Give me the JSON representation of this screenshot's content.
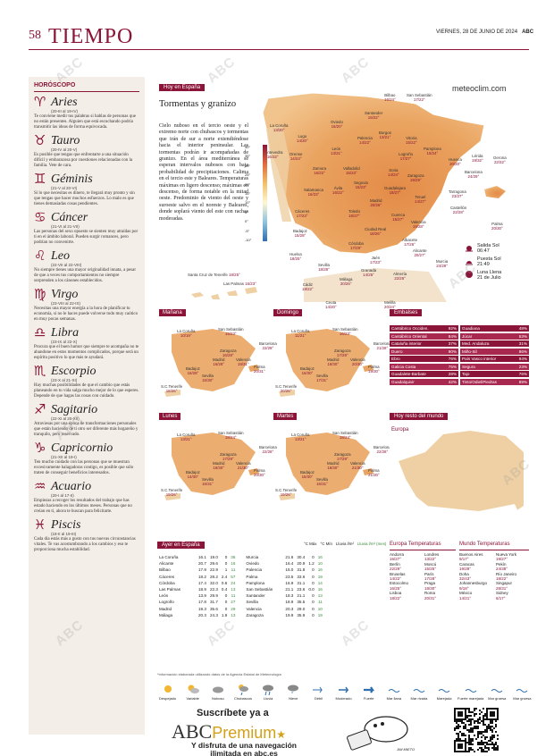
{
  "header": {
    "page_number": "58",
    "section": "TIEMPO",
    "date": "VIERNES, 28 DE JUNIO DE 2024",
    "brand": "ABC"
  },
  "horoscope": {
    "title": "HORÓSCOPO",
    "signs": [
      {
        "glyph": "♈",
        "name": "Aries",
        "dates": "(20-III al 19-IV)",
        "text": "Te conviene medir tus palabras si hablas de personas que no están presentes. Alguien que está escuchando podría transmitir las ideas de forma equivocada."
      },
      {
        "glyph": "♉",
        "name": "Tauro",
        "dates": "(20-IV al 20-V)",
        "text": "Es posible que tengas que enfrentarte a una situación difícil y embarazosa por cuestiones relacionadas con la familia. Vete de cara."
      },
      {
        "glyph": "♊",
        "name": "Géminis",
        "dates": "(21-V al 20-VI)",
        "text": "Si lo que necesitas es dinero, te llegará muy pronto y sin que tengas que hacer muchos esfuerzos. Lo malo es que tienes demasiadas cosas pendientes."
      },
      {
        "glyph": "♋",
        "name": "Cáncer",
        "dates": "(21-VI al 21-VII)",
        "text": "Las personas del sexo opuesto se sienten muy atraídas por ti en el ámbito laboral. Pueden surgir romances, pero podrían no convenirte."
      },
      {
        "glyph": "♌",
        "name": "Leo",
        "dates": "(22-VII al 22-VIII)",
        "text": "No siempre tienes una mayor originalidad innata, a pesar de que a veces tus comportamientos no siempre sorprenden a los cánones establecidos."
      },
      {
        "glyph": "♍",
        "name": "Virgo",
        "dates": "(23-VIII al 22-IX)",
        "text": "Necesitas una mayor energía a la hora de planificar tu economía, si no le haces puede volverse todo muy caótico en muy pocas semanas."
      },
      {
        "glyph": "♎",
        "name": "Libra",
        "dates": "(23-IX al 22-X)",
        "text": "Procura que el buen humor que siempre te acompaña no te abandone en estos momentos complicados, porque será un espíritu positivo lo que más te ayudará."
      },
      {
        "glyph": "♏",
        "name": "Escorpio",
        "dates": "(23-X al 21-XI)",
        "text": "Hay muchas posibilidades de que el cambio que estás planeando en tu vida salga mucho mejor de lo que esperes. Depende de que hagas las cosas con cuidado."
      },
      {
        "glyph": "♐",
        "name": "Sagitario",
        "dates": "(22-XI al 20-XII)",
        "text": "Atraviesas por una época de transformaciones personales que están haciendo de ti otro ser diferente más hogareño y tranquilo, pero reservado."
      },
      {
        "glyph": "♑",
        "name": "Capricornio",
        "dates": "(21-XII al 19-I)",
        "text": "Ten mucho cuidado con las personas que se muestran excesivamente halagadoras contigo, es posible que sólo traten de conseguir beneficios interesados."
      },
      {
        "glyph": "♒",
        "name": "Acuario",
        "dates": "(20-I al 17-II)",
        "text": "Empiezas a recoger los resultados del trabajo que has estado haciendo en los últimos meses. Personas que no creían en ti, ahora te buscan para felicitarte."
      },
      {
        "glyph": "♓",
        "name": "Piscis",
        "dates": "(18-II al 19-III)",
        "text": "Cada día estás más a gusto con tus nuevas circunstancias vitales. Te vas acostumbrando a los cambios y eso te proporciona mucha estabilidad."
      }
    ]
  },
  "today": {
    "tag": "Hoy en España",
    "title": "Tormentas y granizo",
    "description": "Cielo nuboso en el tercio oeste y el extremo norte con chubascos y tormentas que irán de sur a norte extendiéndose hacia el interior peninsular. Las tormentas podrán ir acompañadas de granizo. En el área mediterránea se esperan intervalos nubosos con baja probabilidad de precipitaciones. Calima en el tercio este y Baleares. Temperaturas máximas en ligero descenso; máximas en descenso, de forma notable en la mitad oeste. Predominio de viento del oeste y suroeste salvo en el noreste y Baleares, donde soplará viento del este con rachas moderadas.",
    "brand": "meteoclim.com",
    "thermo_scale": [
      "40°",
      "35°",
      "30°",
      "25°",
      "20°",
      "15°",
      "10°",
      "5°",
      "0°",
      "-5°",
      "-10°"
    ]
  },
  "map_cities": [
    {
      "name": "La Coruña",
      "temps": "13/20°"
    },
    {
      "name": "Oviedo",
      "temps": "15/20°"
    },
    {
      "name": "Bilbao",
      "temps": "16/24°"
    },
    {
      "name": "San Sebastián",
      "temps": "17/22°"
    },
    {
      "name": "Lugo",
      "temps": "14/20°"
    },
    {
      "name": "Santander",
      "temps": "16/22°"
    },
    {
      "name": "Pontevedra",
      "temps": "16/22°"
    },
    {
      "name": "Orense",
      "temps": "14/24°"
    },
    {
      "name": "León",
      "temps": "13/21°"
    },
    {
      "name": "Palencia",
      "temps": "14/22°"
    },
    {
      "name": "Burgos",
      "temps": "13/21°"
    },
    {
      "name": "Vitoria",
      "temps": "15/22°"
    },
    {
      "name": "Pamplona",
      "temps": "15/24°"
    },
    {
      "name": "Huesca",
      "temps": "20/30°"
    },
    {
      "name": "Lérida",
      "temps": "19/32°"
    },
    {
      "name": "Gerona",
      "temps": "22/32°"
    },
    {
      "name": "Logroño",
      "temps": "17/27°"
    },
    {
      "name": "Zamora",
      "temps": "16/22°"
    },
    {
      "name": "Valladolid",
      "temps": "15/23°"
    },
    {
      "name": "Soria",
      "temps": "14/24°"
    },
    {
      "name": "Zaragoza",
      "temps": "19/29°"
    },
    {
      "name": "Barcelona",
      "temps": "24/29°"
    },
    {
      "name": "Salamanca",
      "temps": "16/23°"
    },
    {
      "name": "Segovia",
      "temps": "15/23°"
    },
    {
      "name": "Tarragona",
      "temps": "23/27°"
    },
    {
      "name": "Ávila",
      "temps": "16/22°"
    },
    {
      "name": "Guadalajara",
      "temps": "18/27°"
    },
    {
      "name": "Teruel",
      "temps": "14/27°"
    },
    {
      "name": "Madrid",
      "temps": "20/26°"
    },
    {
      "name": "Castellón",
      "temps": "22/28°"
    },
    {
      "name": "Cáceres",
      "temps": "17/23°"
    },
    {
      "name": "Toledo",
      "temps": "19/27°"
    },
    {
      "name": "Cuenca",
      "temps": "15/27°"
    },
    {
      "name": "Palma",
      "temps": "20/30°"
    },
    {
      "name": "Valencia",
      "temps": "19/28°"
    },
    {
      "name": "Badajoz",
      "temps": "15/28°"
    },
    {
      "name": "Ciudad Real",
      "temps": "18/26°"
    },
    {
      "name": "Albacete",
      "temps": "17/26°"
    },
    {
      "name": "Córdoba",
      "temps": "17/29°"
    },
    {
      "name": "Jaén",
      "temps": "17/23°"
    },
    {
      "name": "Alicante",
      "temps": "20/27°"
    },
    {
      "name": "Murcia",
      "temps": "24/29°"
    },
    {
      "name": "Huelva",
      "temps": "18/25°"
    },
    {
      "name": "Sevilla",
      "temps": "18/28°"
    },
    {
      "name": "Granada",
      "temps": "14/25°"
    },
    {
      "name": "Almería",
      "temps": "22/26°"
    },
    {
      "name": "Cádiz",
      "temps": "18/22°"
    },
    {
      "name": "Málaga",
      "temps": "20/26°"
    },
    {
      "name": "Ceuta",
      "temps": "14/20°"
    },
    {
      "name": "Melilla",
      "temps": "20/24°"
    }
  ],
  "canarias": [
    {
      "name": "Santa Cruz de Tenerife",
      "temps": "18/25°"
    },
    {
      "name": "Las Palmas",
      "temps": "16/23°"
    }
  ],
  "sun_moon": [
    {
      "label": "Salida Sol",
      "value": "06:47"
    },
    {
      "label": "Puesta Sol",
      "value": "21:49"
    },
    {
      "label": "Luna Llena",
      "value": "21 de Julio"
    }
  ],
  "forecast_maps": [
    {
      "label": "Mañana",
      "cities": [
        {
          "name": "La Coruña",
          "temps": "10/19°"
        },
        {
          "name": "San Sebastián",
          "temps": "15/23°"
        },
        {
          "name": "Barcelona",
          "temps": "22/28°"
        },
        {
          "name": "Zaragoza",
          "temps": "16/28°"
        },
        {
          "name": "Madrid",
          "temps": "16/28°"
        },
        {
          "name": "Valencia",
          "temps": "19/31°"
        },
        {
          "name": "Palma",
          "temps": "20/31°"
        },
        {
          "name": "Badajoz",
          "temps": "16/28°"
        },
        {
          "name": "Sevilla",
          "temps": "15/30°"
        },
        {
          "name": "S.C.Tenerife",
          "temps": "18/26°"
        }
      ]
    },
    {
      "label": "Domingo",
      "cities": [
        {
          "name": "La Coruña",
          "temps": "11/21°"
        },
        {
          "name": "San Sebastián",
          "temps": "16/23°"
        },
        {
          "name": "Barcelona",
          "temps": "21/28°"
        },
        {
          "name": "Zaragoza",
          "temps": "17/29°"
        },
        {
          "name": "Madrid",
          "temps": "18/30°"
        },
        {
          "name": "Valencia",
          "temps": "20/30°"
        },
        {
          "name": "Palma",
          "temps": "19/30°"
        },
        {
          "name": "Badajoz",
          "temps": "16/30°"
        },
        {
          "name": "Sevilla",
          "temps": "17/31°"
        },
        {
          "name": "S.C.Tenerife",
          "temps": "20/26°"
        }
      ]
    },
    {
      "label": "Lunes",
      "cities": [
        {
          "name": "La Coruña",
          "temps": "13/21°"
        },
        {
          "name": "San Sebastián",
          "temps": "18/24°"
        },
        {
          "name": "Barcelona",
          "temps": "22/28°"
        },
        {
          "name": "Zaragoza",
          "temps": "17/29°"
        },
        {
          "name": "Madrid",
          "temps": "19/30°"
        },
        {
          "name": "Valencia",
          "temps": "21/30°"
        },
        {
          "name": "Palma",
          "temps": "20/30°"
        },
        {
          "name": "Badajoz",
          "temps": "14/30°"
        },
        {
          "name": "Sevilla",
          "temps": "16/31°"
        },
        {
          "name": "S.C.Tenerife",
          "temps": "19/26°"
        }
      ]
    },
    {
      "label": "Martes",
      "cities": [
        {
          "name": "La Coruña",
          "temps": "13/21°"
        },
        {
          "name": "San Sebastián",
          "temps": "18/24°"
        },
        {
          "name": "Barcelona",
          "temps": "22/28°"
        },
        {
          "name": "Zaragoza",
          "temps": "17/29°"
        },
        {
          "name": "Madrid",
          "temps": "18/30°"
        },
        {
          "name": "Valencia",
          "temps": "21/30°"
        },
        {
          "name": "Palma",
          "temps": "21/30°"
        },
        {
          "name": "Badajoz",
          "temps": "15/30°"
        },
        {
          "name": "Sevilla",
          "temps": "16/31°"
        },
        {
          "name": "S.C.Tenerife",
          "temps": "19/26°"
        }
      ]
    }
  ],
  "reservoirs": {
    "tag": "Embalses",
    "left": [
      {
        "name": "Cantábrico Occiden.",
        "pct": "92%"
      },
      {
        "name": "Cantábrico Oriental",
        "pct": "84%"
      },
      {
        "name": "Cataluña interior",
        "pct": "37%"
      },
      {
        "name": "Duero",
        "pct": "90%"
      },
      {
        "name": "Ebro",
        "pct": "76%"
      },
      {
        "name": "Galicia Costa",
        "pct": "75%"
      },
      {
        "name": "Guadalete-Barbate",
        "pct": "28%"
      },
      {
        "name": "Guadalquivir",
        "pct": "42%"
      }
    ],
    "right": [
      {
        "name": "Guadiana",
        "pct": "48%"
      },
      {
        "name": "Júcar",
        "pct": "53%"
      },
      {
        "name": "Med. Andaluza",
        "pct": "31%"
      },
      {
        "name": "Miño-Sil",
        "pct": "86%"
      },
      {
        "name": "País Vasco interior",
        "pct": "94%"
      },
      {
        "name": "Segura",
        "pct": "23%"
      },
      {
        "name": "Tajo",
        "pct": "76%"
      },
      {
        "name": "Tinto/Odiel/Piedras",
        "pct": "89%"
      }
    ]
  },
  "world": {
    "tag": "Hoy resto del mundo",
    "region": "Europa"
  },
  "spain_temps": {
    "tag": "Ayer en España",
    "headers": [
      "°C Máx",
      "°C Mín",
      "Lluvia l/m²",
      "Lluvia l/m² (mes)"
    ],
    "left": [
      {
        "city": "La Coruña",
        "v": [
          "16.1",
          "19.0",
          "0",
          "36"
        ]
      },
      {
        "city": "Alicante",
        "v": [
          "20.7",
          "29.6",
          "0",
          "16"
        ]
      },
      {
        "city": "Bilbao",
        "v": [
          "17.9",
          "22.9",
          "1",
          "11"
        ]
      },
      {
        "city": "Cáceres",
        "v": [
          "18.2",
          "28.2",
          "2.4",
          "57"
        ]
      },
      {
        "city": "Córdoba",
        "v": [
          "17.4",
          "32.0",
          "0.6",
          "24"
        ]
      },
      {
        "city": "Las Palmas",
        "v": [
          "18.9",
          "22.3",
          "0.4",
          "13"
        ]
      },
      {
        "city": "León",
        "v": [
          "13.9",
          "29.9",
          "0",
          "11"
        ]
      },
      {
        "city": "Logroño",
        "v": [
          "17.8",
          "31.7",
          "0",
          "27"
        ]
      },
      {
        "city": "Madrid",
        "v": [
          "19.3",
          "35.6",
          "0",
          "29"
        ]
      },
      {
        "city": "Málaga",
        "v": [
          "20.3",
          "24.3",
          "1.9",
          "13"
        ]
      }
    ],
    "right": [
      {
        "city": "Murcia",
        "v": [
          "21.6",
          "30.4",
          "0",
          "16"
        ]
      },
      {
        "city": "Oviedo",
        "v": [
          "16.4",
          "20.9",
          "1.2",
          "10"
        ]
      },
      {
        "city": "Palencia",
        "v": [
          "15.0",
          "31.8",
          "0",
          "16"
        ]
      },
      {
        "city": "Palma",
        "v": [
          "23.5",
          "33.6",
          "0",
          "19"
        ]
      },
      {
        "city": "Pamplona",
        "v": [
          "16.9",
          "31.1",
          "0",
          "14"
        ]
      },
      {
        "city": "San Sebastián",
        "v": [
          "21.1",
          "23.6",
          "0.0",
          "16"
        ]
      },
      {
        "city": "Santander",
        "v": [
          "18.3",
          "21.1",
          "0",
          "13"
        ]
      },
      {
        "city": "Sevilla",
        "v": [
          "18.9",
          "35.5",
          "0",
          "11"
        ]
      },
      {
        "city": "Valencia",
        "v": [
          "20.3",
          "29.0",
          "0",
          "10"
        ]
      },
      {
        "city": "Zaragoza",
        "v": [
          "19.9",
          "35.9",
          "0",
          "19"
        ]
      }
    ],
    "note": "*Información elaborada utilizando datos de la Agencia Estatal de Meteorología"
  },
  "europe_temps": {
    "title": "Europa Temperaturas",
    "rows": [
      [
        "Andorra",
        "16/27°",
        "Londres",
        "13/22°"
      ],
      [
        "Berlín",
        "22/29°",
        "Moscú",
        "15/25°"
      ],
      [
        "Bruselas",
        "14/22°",
        "París",
        "17/28°"
      ],
      [
        "Estocolmo",
        "16/25°",
        "Praga",
        "18/30°"
      ],
      [
        "Lisboa",
        "18/22°",
        "Roma",
        "20/31°"
      ]
    ]
  },
  "world_temps": {
    "title": "Mundo Temperaturas",
    "rows": [
      [
        "Buenos Aires",
        "9/17°",
        "Nueva York",
        "19/27°"
      ],
      [
        "Caracas",
        "19/28°",
        "Pekín",
        "24/38°"
      ],
      [
        "Doha",
        "32/43°",
        "Río Janeiro",
        "18/22°"
      ],
      [
        "Johannesburgo",
        "9/18°",
        "Singapur",
        "28/31°"
      ],
      [
        "México",
        "14/21°",
        "Sidney",
        "6/17°"
      ]
    ]
  },
  "legend": [
    "Despejado",
    "Variable",
    "Nuboso",
    "Chubascos",
    "Lluvia",
    "Nieve",
    "Débil",
    "Moderado",
    "Fuerte",
    "Mar llana",
    "Mar rizada",
    "Marejada",
    "Fuerte marejada",
    "Mar gruesa",
    "Mar gruesa"
  ],
  "ad": {
    "line1": "Suscríbete ya a",
    "brand_main": "ABC",
    "brand_sub": "Premium",
    "line2": "Y disfruta de una navegación ilimitada en abc.es",
    "signature": "JIM MIETO"
  },
  "watermark": "ABC",
  "colors": {
    "accent": "#8a1538",
    "map_warm": "#e8a35a",
    "sea": "#ffffff"
  }
}
